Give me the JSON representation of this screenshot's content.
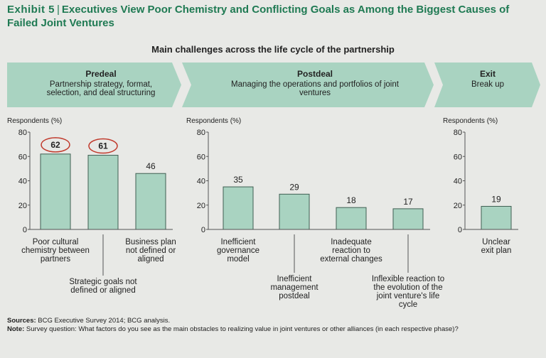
{
  "header": {
    "exhibit": "Exhibit 5",
    "title": "Executives View Poor Chemistry and Conflicting Goals as Among the Biggest Causes of Failed Joint Ventures",
    "subtitle": "Main challenges across the life cycle of the partnership"
  },
  "phases": [
    {
      "name": "Predeal",
      "description": "Partnership strategy, format, selection, and deal structuring"
    },
    {
      "name": "Postdeal",
      "description": "Managing the operations and portfolios of joint ventures"
    },
    {
      "name": "Exit",
      "description": "Break up"
    }
  ],
  "chart_data": [
    {
      "type": "bar",
      "phase": "Predeal",
      "ylabel": "Respondents (%)",
      "ylim": [
        0,
        80
      ],
      "yticks": [
        0,
        20,
        40,
        60,
        80
      ],
      "categories": [
        "Poor cultural chemistry between partners",
        "Strategic goals not defined or aligned",
        "Business plan not defined or aligned"
      ],
      "values": [
        62,
        61,
        46
      ],
      "highlighted": [
        true,
        true,
        false
      ]
    },
    {
      "type": "bar",
      "phase": "Postdeal",
      "ylabel": "Respondents (%)",
      "ylim": [
        0,
        80
      ],
      "yticks": [
        0,
        20,
        40,
        60,
        80
      ],
      "categories": [
        "Inefficient governance model",
        "Inefficient management postdeal",
        "Inadequate reaction to external changes",
        "Inflexible reaction to the evolution of the joint venture's life cycle"
      ],
      "values": [
        35,
        29,
        18,
        17
      ],
      "highlighted": [
        false,
        false,
        false,
        false
      ]
    },
    {
      "type": "bar",
      "phase": "Exit",
      "ylabel": "Respondents (%)",
      "ylim": [
        0,
        80
      ],
      "yticks": [
        0,
        20,
        40,
        60,
        80
      ],
      "categories": [
        "Unclear exit plan"
      ],
      "values": [
        19
      ],
      "highlighted": [
        false
      ]
    }
  ],
  "footer": {
    "sources_label": "Sources:",
    "sources_text": "BCG Executive Survey 2014; BCG analysis.",
    "note_label": "Note:",
    "note_text": "Survey question: What factors do you see as the main obstacles to realizing value in joint ventures or other alliances (in each respective phase)?"
  },
  "colors": {
    "bar_fill": "#a9d3c1",
    "bar_stroke": "#3f5f52",
    "arrow_fill": "#a9d3c1",
    "highlight_ring": "#c0392b",
    "title": "#1f7a53"
  }
}
